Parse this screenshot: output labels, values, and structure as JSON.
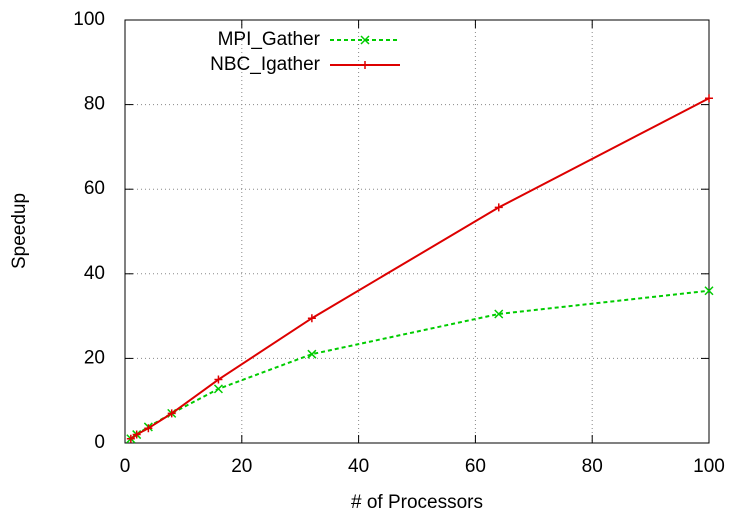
{
  "chart_data": {
    "type": "line",
    "x_label": "# of Processors",
    "y_label": "Speedup",
    "x": [
      1,
      2,
      4,
      8,
      16,
      32,
      64,
      100
    ],
    "series": [
      {
        "name": "MPI_Gather",
        "color": "#00cc00",
        "dashed": true,
        "marker": "x",
        "values": [
          1,
          2,
          3.8,
          7,
          12.8,
          21,
          30.5,
          36
        ]
      },
      {
        "name": "NBC_Igather",
        "color": "#dd0000",
        "dashed": false,
        "marker": "+",
        "values": [
          1,
          2,
          3.5,
          7,
          15,
          29.5,
          55.7,
          81.5
        ]
      }
    ],
    "xlim": [
      0,
      100
    ],
    "ylim": [
      0,
      100
    ],
    "xticks": [
      0,
      20,
      40,
      60,
      80,
      100
    ],
    "yticks": [
      0,
      20,
      40,
      60,
      80,
      100
    ],
    "grid": true,
    "legend": "top-left"
  }
}
